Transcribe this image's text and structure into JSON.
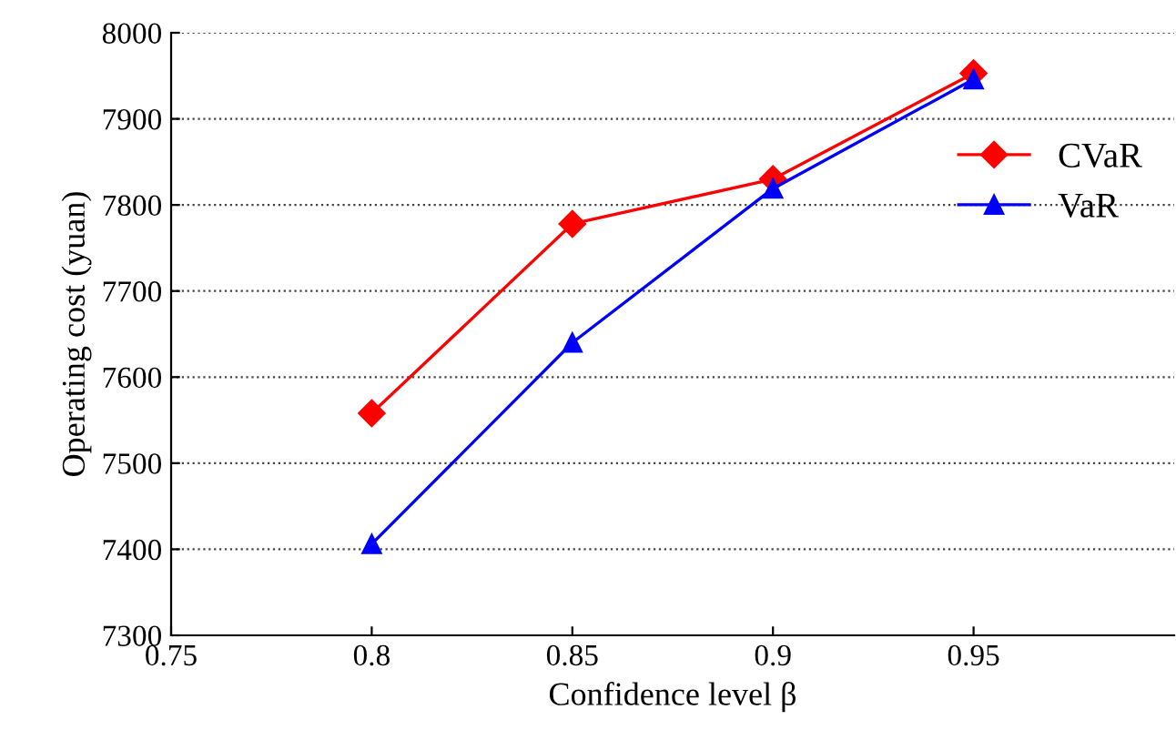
{
  "chart_data": {
    "type": "line",
    "xlabel": "Confidence level β",
    "ylabel": "Operating cost (yuan)",
    "x": [
      0.8,
      0.85,
      0.9,
      0.95
    ],
    "series": [
      {
        "name": "CVaR",
        "color": "#ff0000",
        "marker": "diamond",
        "values": [
          7558,
          7778,
          7830,
          7953
        ]
      },
      {
        "name": "VaR",
        "color": "#0000ff",
        "marker": "triangle",
        "values": [
          7406,
          7640,
          7819,
          7946
        ]
      }
    ],
    "xlim": [
      0.75,
      1.0
    ],
    "xticks": [
      0.75,
      0.8,
      0.85,
      0.9,
      0.95
    ],
    "ylim": [
      7300,
      8000
    ],
    "yticks": [
      7300,
      7400,
      7500,
      7600,
      7700,
      7800,
      7900,
      8000
    ],
    "grid": "y",
    "legend": "right",
    "line_style": "solid"
  }
}
